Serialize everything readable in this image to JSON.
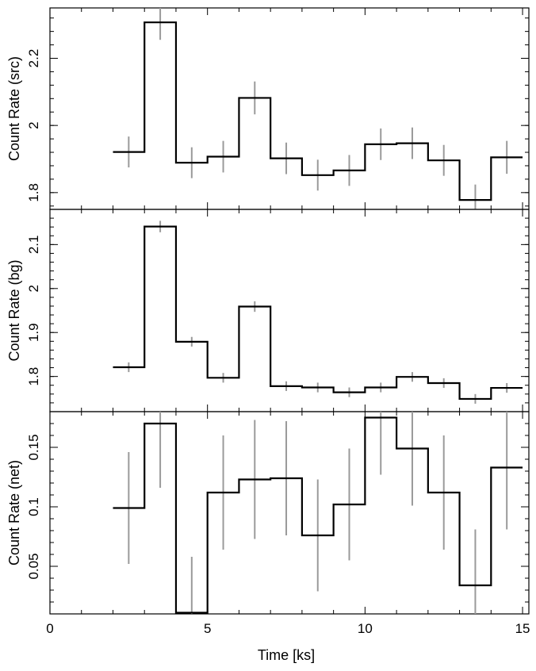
{
  "chart_data": {
    "type": "line",
    "style": "step histogram with error bars, three stacked panels sharing x axis",
    "xlabel": "Time [ks]",
    "xlim": [
      0,
      15.2
    ],
    "xticks": [
      0,
      5,
      10,
      15
    ],
    "bins": [
      [
        2,
        3
      ],
      [
        3,
        4
      ],
      [
        4,
        5
      ],
      [
        5,
        6
      ],
      [
        6,
        7
      ],
      [
        7,
        8
      ],
      [
        8,
        9
      ],
      [
        9,
        10
      ],
      [
        10,
        11
      ],
      [
        11,
        12
      ],
      [
        12,
        13
      ],
      [
        13,
        14
      ],
      [
        14,
        15
      ]
    ],
    "bin_centers": [
      2.5,
      3.5,
      4.5,
      5.5,
      6.5,
      7.5,
      8.5,
      9.5,
      10.5,
      11.5,
      12.5,
      13.5,
      14.5
    ],
    "line_color": "#000000",
    "error_color": "#9a9a9a",
    "panels": [
      {
        "ylabel": "Count Rate (src)",
        "ylim": [
          1.75,
          2.35
        ],
        "yticks": [
          1.8,
          2,
          2.2
        ],
        "ytick_labels": [
          "1.8",
          "2",
          "2.2"
        ],
        "values": [
          1.921,
          2.307,
          1.889,
          1.907,
          2.082,
          1.902,
          1.852,
          1.866,
          1.944,
          1.947,
          1.896,
          1.778,
          1.905
        ],
        "errors": [
          0.046,
          0.052,
          0.046,
          0.047,
          0.049,
          0.047,
          0.046,
          0.046,
          0.047,
          0.047,
          0.046,
          0.046,
          0.049
        ]
      },
      {
        "ylabel": "Count Rate (bg)",
        "ylim": [
          1.72,
          2.18
        ],
        "yticks": [
          1.8,
          1.9,
          2,
          2.1
        ],
        "ytick_labels": [
          "1.8",
          "1.9",
          "2",
          "2.1"
        ],
        "values": [
          1.821,
          2.141,
          1.879,
          1.797,
          1.959,
          1.778,
          1.775,
          1.764,
          1.775,
          1.799,
          1.785,
          1.749,
          1.774
        ],
        "errors": [
          0.011,
          0.013,
          0.011,
          0.011,
          0.012,
          0.011,
          0.011,
          0.011,
          0.011,
          0.011,
          0.011,
          0.011,
          0.011
        ]
      },
      {
        "ylabel": "Count Rate (net)",
        "ylim": [
          0.01,
          0.18
        ],
        "yticks": [
          0.05,
          0.1,
          0.15
        ],
        "ytick_labels": [
          "0.05",
          "0.1",
          "0.15"
        ],
        "values": [
          0.099,
          0.17,
          0.011,
          0.112,
          0.123,
          0.124,
          0.076,
          0.102,
          0.175,
          0.149,
          0.112,
          0.034,
          0.133
        ],
        "errors": [
          0.047,
          0.054,
          0.047,
          0.048,
          0.05,
          0.048,
          0.047,
          0.047,
          0.048,
          0.048,
          0.048,
          0.047,
          0.052
        ]
      }
    ]
  }
}
